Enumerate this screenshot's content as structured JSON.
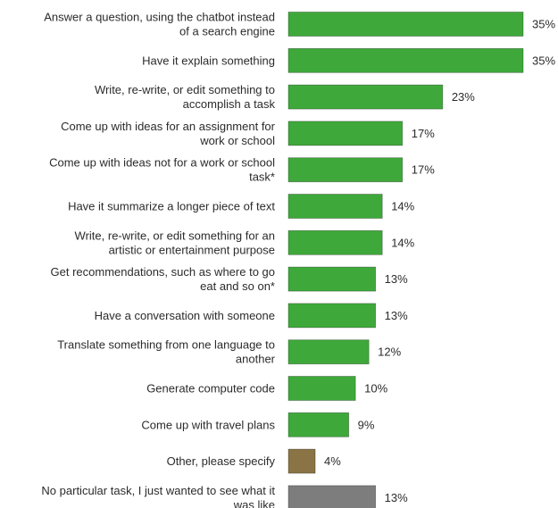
{
  "chart_data": {
    "type": "bar",
    "orientation": "horizontal",
    "categories": [
      [
        "Answer a question, using the chatbot instead",
        "of a search engine"
      ],
      [
        "Have it explain something"
      ],
      [
        "Write, re-write, or edit something to",
        "accomplish a task"
      ],
      [
        "Come up with ideas for an assignment for",
        "work or school"
      ],
      [
        "Come up with ideas not for a work or school",
        "task*"
      ],
      [
        "Have it summarize a longer piece of text"
      ],
      [
        "Write, re-write, or edit something for an",
        "artistic or entertainment purpose"
      ],
      [
        "Get recommendations, such as where to go",
        "eat and so on*"
      ],
      [
        "Have a conversation with someone"
      ],
      [
        "Translate something from one language to",
        "another"
      ],
      [
        "Generate computer code"
      ],
      [
        "Come up with travel plans"
      ],
      [
        "Other, please specify"
      ],
      [
        "No particular task, I just wanted to see what it",
        "was like"
      ]
    ],
    "values": [
      35,
      35,
      23,
      17,
      17,
      14,
      14,
      13,
      13,
      12,
      10,
      9,
      4,
      13
    ],
    "value_labels": [
      "35%",
      "35%",
      "23%",
      "17%",
      "17%",
      "14%",
      "14%",
      "13%",
      "13%",
      "12%",
      "10%",
      "9%",
      "4%",
      "13%"
    ],
    "bar_colors": [
      "#3ea93a",
      "#3ea93a",
      "#3ea93a",
      "#3ea93a",
      "#3ea93a",
      "#3ea93a",
      "#3ea93a",
      "#3ea93a",
      "#3ea93a",
      "#3ea93a",
      "#3ea93a",
      "#3ea93a",
      "#8a7445",
      "#7d7d7d"
    ],
    "value_unit": "%",
    "xlim": [
      0,
      35
    ],
    "grid": false,
    "legend": "none"
  }
}
